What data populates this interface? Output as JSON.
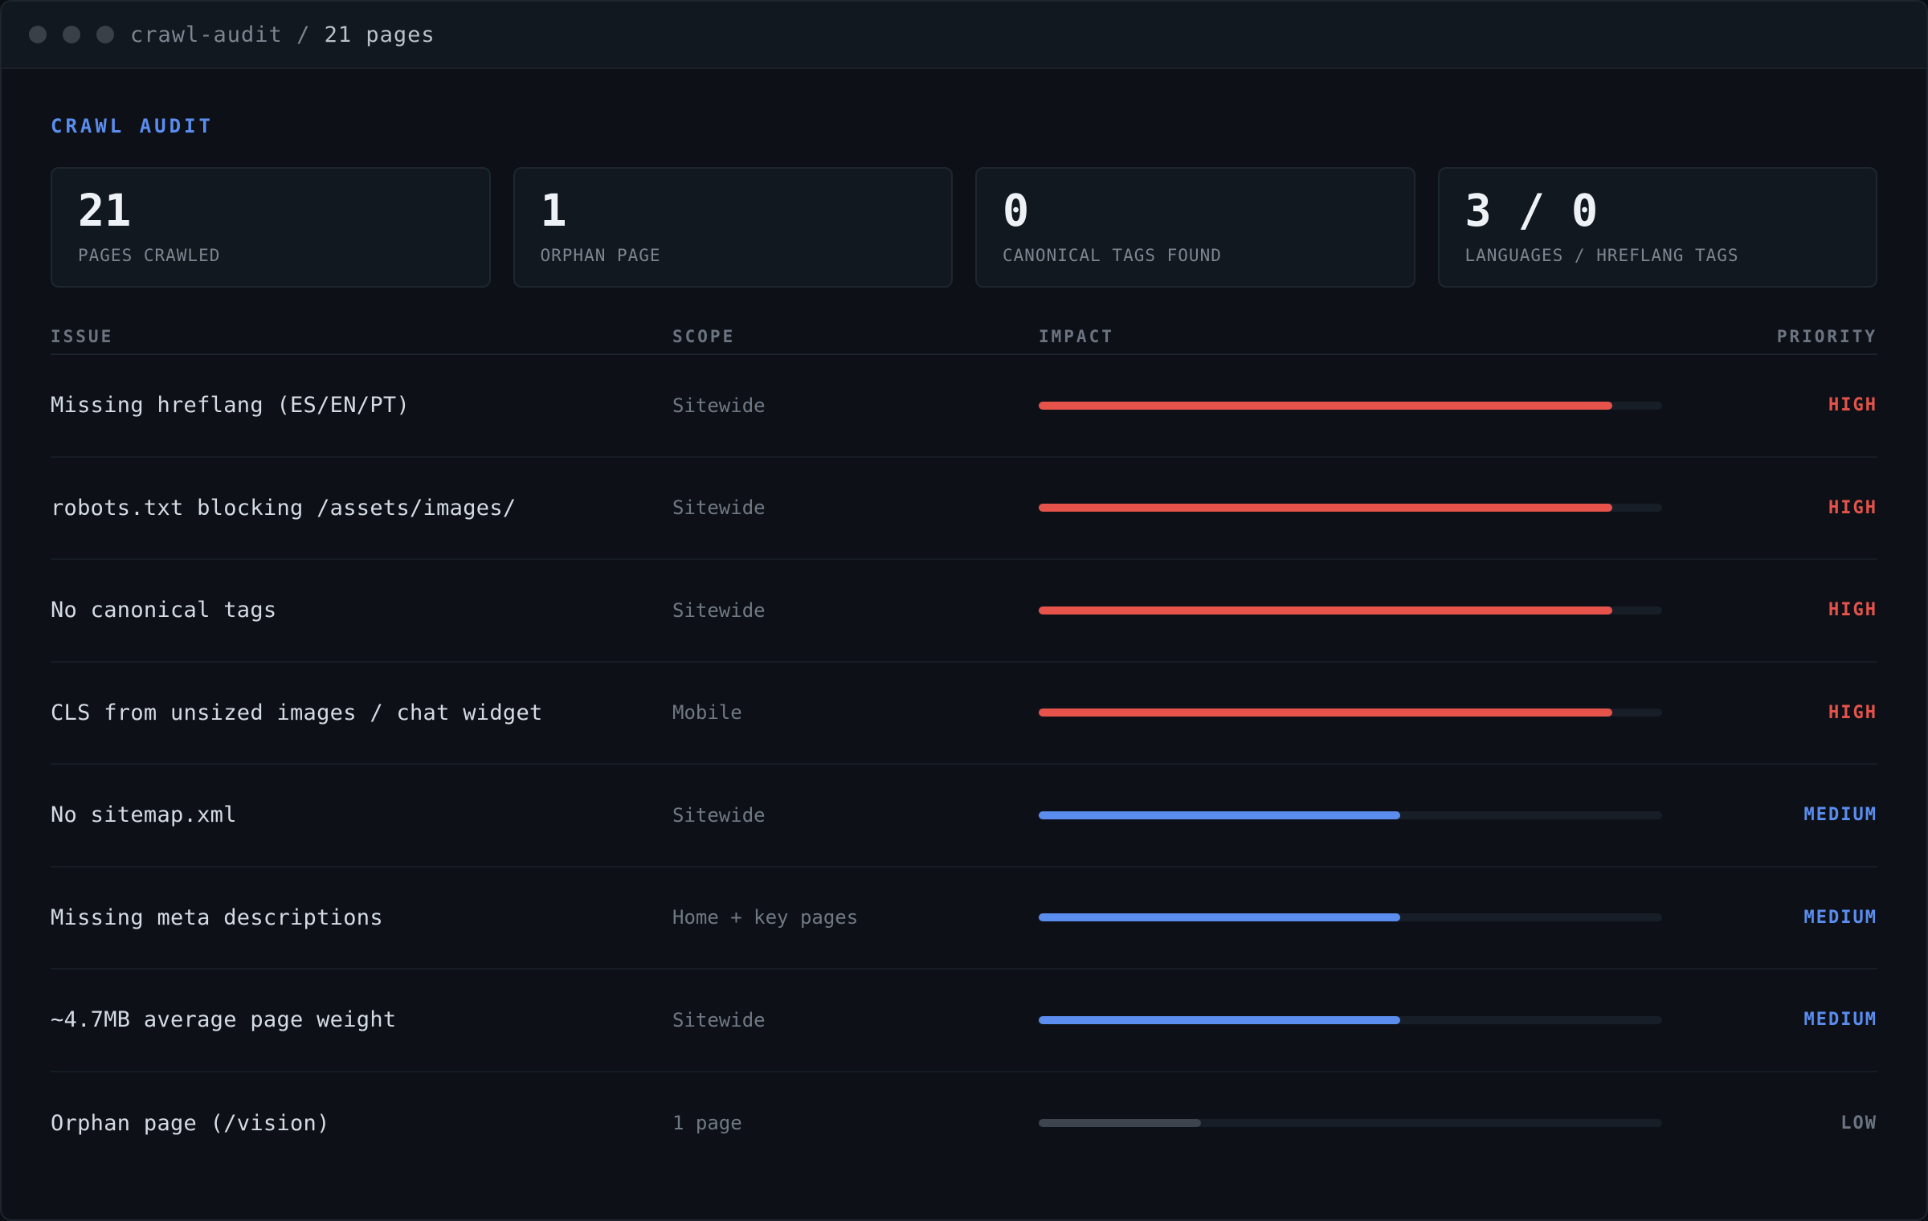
{
  "window": {
    "path": "crawl-audit /",
    "pages": "21 pages"
  },
  "section_label": "CRAWL AUDIT",
  "stats": [
    {
      "value": "21",
      "label": "PAGES CRAWLED"
    },
    {
      "value": "1",
      "label": "ORPHAN PAGE"
    },
    {
      "value": "0",
      "label": "CANONICAL TAGS FOUND"
    },
    {
      "value": "3 / 0",
      "label": "LANGUAGES / HREFLANG TAGS"
    }
  ],
  "table": {
    "headers": {
      "issue": "ISSUE",
      "scope": "SCOPE",
      "impact": "IMPACT",
      "priority": "PRIORITY"
    },
    "rows": [
      {
        "issue": "Missing hreflang (ES/EN/PT)",
        "scope": "Sitewide",
        "impact": 0.92,
        "priority": "HIGH",
        "level": "high"
      },
      {
        "issue": "robots.txt blocking /assets/images/",
        "scope": "Sitewide",
        "impact": 0.92,
        "priority": "HIGH",
        "level": "high"
      },
      {
        "issue": "No canonical tags",
        "scope": "Sitewide",
        "impact": 0.92,
        "priority": "HIGH",
        "level": "high"
      },
      {
        "issue": "CLS from unsized images / chat widget",
        "scope": "Mobile",
        "impact": 0.92,
        "priority": "HIGH",
        "level": "high"
      },
      {
        "issue": "No sitemap.xml",
        "scope": "Sitewide",
        "impact": 0.58,
        "priority": "MEDIUM",
        "level": "medium"
      },
      {
        "issue": "Missing meta descriptions",
        "scope": "Home + key pages",
        "impact": 0.58,
        "priority": "MEDIUM",
        "level": "medium"
      },
      {
        "issue": "~4.7MB average page weight",
        "scope": "Sitewide",
        "impact": 0.58,
        "priority": "MEDIUM",
        "level": "medium"
      },
      {
        "issue": "Orphan page (/vision)",
        "scope": "1 page",
        "impact": 0.26,
        "priority": "LOW",
        "level": "low"
      }
    ]
  },
  "colors": {
    "accent": "#5b8def",
    "high": "#e5534b",
    "medium": "#5b8def",
    "low": "#3d444d",
    "background": "#0d1117"
  }
}
